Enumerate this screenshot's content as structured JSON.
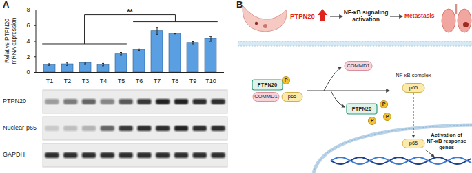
{
  "panels": [
    "A",
    "B"
  ],
  "chart_data": {
    "type": "bar",
    "categories": [
      "T1",
      "T2",
      "T3",
      "T4",
      "T5",
      "T6",
      "T7",
      "T8",
      "T9",
      "T10"
    ],
    "values": [
      1.0,
      1.05,
      1.2,
      1.0,
      2.4,
      2.9,
      5.3,
      4.95,
      3.8,
      4.3
    ],
    "errors": [
      0.1,
      0.15,
      0.1,
      0.15,
      0.15,
      0.1,
      0.45,
      0.05,
      0.15,
      0.3
    ],
    "color": "#5b9fe3",
    "ylim": [
      0,
      8
    ],
    "yticks": [
      0,
      2,
      4,
      6,
      8
    ],
    "ylabel": "Relative PTPN20 mRNA expression",
    "significance": {
      "label": "**",
      "groups": [
        [
          "T1",
          "T5"
        ],
        [
          "T6",
          "T10"
        ]
      ]
    }
  },
  "blot": {
    "rows": [
      {
        "name": "PTPN20",
        "intensity": [
          0.35,
          0.5,
          0.6,
          0.45,
          0.65,
          0.8,
          0.9,
          0.9,
          0.85,
          0.85
        ]
      },
      {
        "name": "Nuclear-p65",
        "intensity": [
          0.15,
          0.2,
          0.25,
          0.6,
          0.8,
          0.85,
          0.85,
          0.9,
          0.85,
          0.85
        ]
      },
      {
        "name": "GAPDH",
        "intensity": [
          0.85,
          0.85,
          0.85,
          0.85,
          0.85,
          0.85,
          0.85,
          0.85,
          0.85,
          0.85
        ]
      }
    ]
  },
  "diagram": {
    "top": {
      "gene": "PTPN20",
      "pathway": "NF-κB signaling activation",
      "outcome": "Metastasis"
    },
    "complex": {
      "phosphatase": "PTPN20",
      "partner": "COMMD1",
      "subunit": "p65",
      "phospho": "P"
    },
    "released": "COMMD1",
    "nfkb": {
      "label": "NF-κB complex",
      "subunit": "p65"
    },
    "product": {
      "phosphatase": "PTPN20",
      "phospho": [
        "P",
        "P",
        "P"
      ]
    },
    "nuclear": "p65",
    "genes": "Activation of NF-κB response genes"
  }
}
